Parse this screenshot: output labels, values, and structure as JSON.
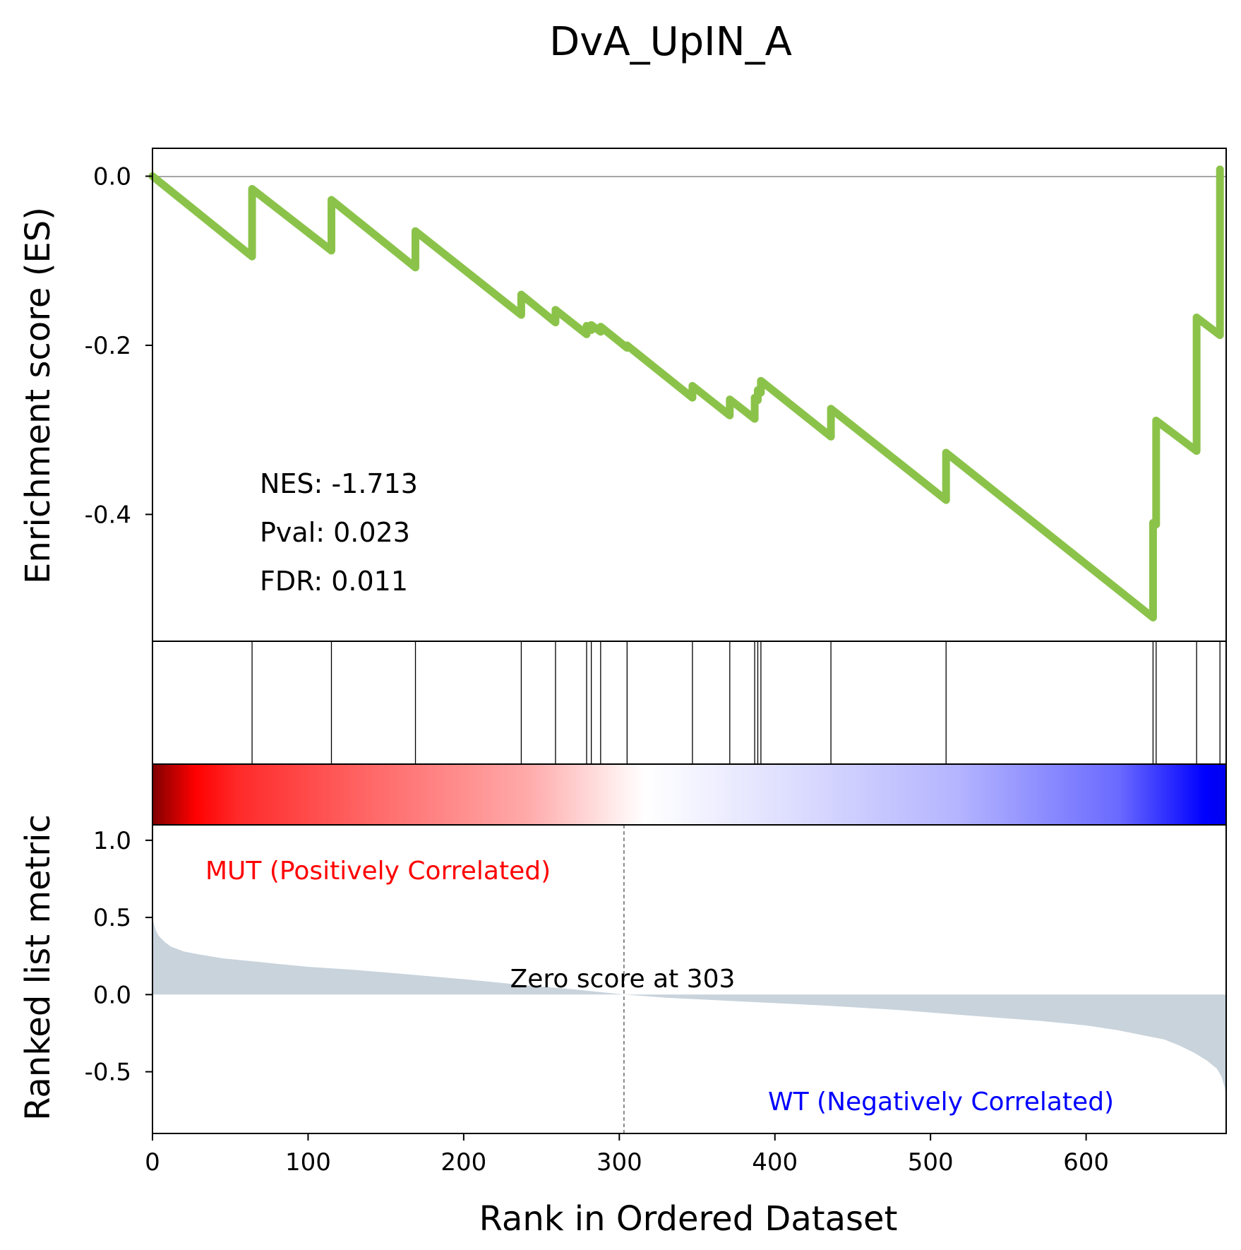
{
  "chart_data": {
    "type": "line",
    "title": "DvA_UpIN_A",
    "xlabel": "Rank in Ordered Dataset",
    "es_ylabel": "Enrichment score (ES)",
    "metric_ylabel": "Ranked list metric",
    "xlim": [
      0,
      690
    ],
    "es_ylim": [
      -0.55,
      0.033
    ],
    "metric_ylim": [
      -0.9,
      1.1
    ],
    "x_ticks": [
      "0",
      "100",
      "200",
      "300",
      "400",
      "500",
      "600"
    ],
    "es_ticks": [
      "0.0",
      "-0.2",
      "-0.4"
    ],
    "metric_ticks": [
      "1.0",
      "0.5",
      "0.0",
      "-0.5"
    ],
    "stats": {
      "nes": "NES: -1.713",
      "pval": "Pval: 0.023",
      "fdr": "FDR: 0.011"
    },
    "pos_label": "MUT (Positively Correlated)",
    "neg_label": "WT (Negatively Correlated)",
    "zero_label": "Zero score at 303",
    "zero_rank": 303,
    "line_color": "#8bc34a",
    "pos_color": "#ff0000",
    "neg_color": "#0000ff",
    "metric_fill_color": "#c8d3dc",
    "hit_ranks": [
      64,
      115,
      169,
      237,
      259,
      279,
      282,
      288,
      305,
      347,
      371,
      387,
      389,
      391,
      436,
      510,
      643,
      645,
      671,
      686
    ],
    "es_points": [
      [
        0,
        0.0
      ],
      [
        64,
        -0.095
      ],
      [
        64,
        -0.015
      ],
      [
        115,
        -0.088
      ],
      [
        115,
        -0.028
      ],
      [
        169,
        -0.108
      ],
      [
        169,
        -0.065
      ],
      [
        237,
        -0.164
      ],
      [
        237,
        -0.14
      ],
      [
        259,
        -0.173
      ],
      [
        259,
        -0.158
      ],
      [
        279,
        -0.187
      ],
      [
        279,
        -0.177
      ],
      [
        282,
        -0.182
      ],
      [
        282,
        -0.176
      ],
      [
        288,
        -0.184
      ],
      [
        288,
        -0.178
      ],
      [
        305,
        -0.203
      ],
      [
        305,
        -0.2
      ],
      [
        347,
        -0.262
      ],
      [
        347,
        -0.248
      ],
      [
        371,
        -0.283
      ],
      [
        371,
        -0.264
      ],
      [
        387,
        -0.287
      ],
      [
        387,
        -0.262
      ],
      [
        389,
        -0.265
      ],
      [
        389,
        -0.253
      ],
      [
        391,
        -0.256
      ],
      [
        391,
        -0.242
      ],
      [
        436,
        -0.308
      ],
      [
        436,
        -0.275
      ],
      [
        510,
        -0.383
      ],
      [
        510,
        -0.327
      ],
      [
        643,
        -0.522
      ],
      [
        643,
        -0.41
      ],
      [
        645,
        -0.412
      ],
      [
        645,
        -0.289
      ],
      [
        671,
        -0.325
      ],
      [
        671,
        -0.167
      ],
      [
        686,
        -0.188
      ],
      [
        686,
        0.008
      ]
    ],
    "metric_points": [
      [
        0,
        0.49
      ],
      [
        2,
        0.42
      ],
      [
        4,
        0.38
      ],
      [
        8,
        0.34
      ],
      [
        12,
        0.31
      ],
      [
        20,
        0.28
      ],
      [
        30,
        0.26
      ],
      [
        45,
        0.235
      ],
      [
        60,
        0.22
      ],
      [
        80,
        0.2
      ],
      [
        100,
        0.18
      ],
      [
        130,
        0.16
      ],
      [
        160,
        0.135
      ],
      [
        200,
        0.1
      ],
      [
        240,
        0.06
      ],
      [
        270,
        0.035
      ],
      [
        303,
        0.0
      ],
      [
        330,
        -0.02
      ],
      [
        380,
        -0.045
      ],
      [
        430,
        -0.07
      ],
      [
        480,
        -0.1
      ],
      [
        530,
        -0.14
      ],
      [
        570,
        -0.17
      ],
      [
        600,
        -0.2
      ],
      [
        620,
        -0.23
      ],
      [
        635,
        -0.26
      ],
      [
        650,
        -0.29
      ],
      [
        660,
        -0.33
      ],
      [
        670,
        -0.38
      ],
      [
        678,
        -0.43
      ],
      [
        684,
        -0.48
      ],
      [
        687,
        -0.53
      ],
      [
        689,
        -0.6
      ],
      [
        690,
        -0.65
      ]
    ]
  }
}
